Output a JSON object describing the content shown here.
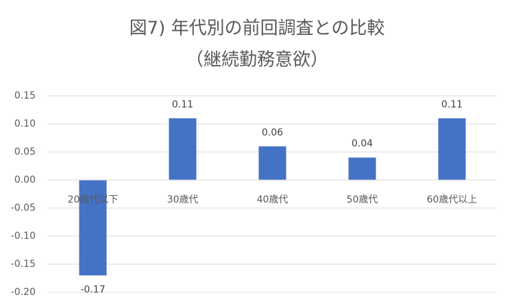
{
  "chart_data": {
    "type": "bar",
    "title": "図7) 年代別の前回調査との比較",
    "subtitle": "（継続勤務意欲）",
    "categories": [
      "20歳代以下",
      "30歳代",
      "40歳代",
      "50歳代",
      "60歳代以上"
    ],
    "values": [
      -0.17,
      0.11,
      0.06,
      0.04,
      0.11
    ],
    "color": "#4472c4",
    "ylim": [
      -0.2,
      0.15
    ],
    "yticks": [
      0.15,
      {
        "value": 0.1,
        "label": "0.10"
      },
      0.05,
      {
        "value": 0,
        "label": "0.00"
      },
      -0.05,
      {
        "value": -0.1,
        "label": "-0.10"
      },
      -0.15,
      {
        "value": -0.2,
        "label": "-0.20"
      }
    ],
    "grid": true
  }
}
